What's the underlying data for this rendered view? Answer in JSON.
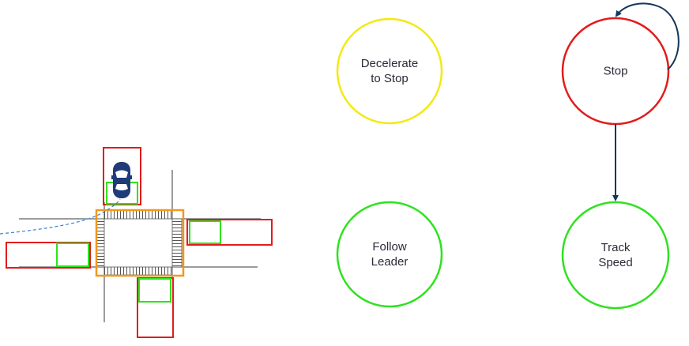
{
  "diagram": {
    "title": "",
    "states": [
      {
        "id": "decelerate",
        "line1": "Decelerate",
        "line2": "to Stop",
        "color": "#f2ea10"
      },
      {
        "id": "stop",
        "line1": "Stop",
        "line2": "",
        "color": "#e31b1b"
      },
      {
        "id": "follow",
        "line1": "Follow",
        "line2": "Leader",
        "color": "#2fe21f"
      },
      {
        "id": "track",
        "line1": "Track",
        "line2": "Speed",
        "color": "#2fe21f"
      }
    ],
    "transitions": [
      {
        "from": "stop",
        "to": "stop",
        "type": "self-loop"
      },
      {
        "from": "stop",
        "to": "track",
        "type": "arrow"
      }
    ],
    "arrow_color": "#16365c"
  },
  "intersection": {
    "description_icon": "car-icon",
    "road_color": "#3a3a3a",
    "region_colors": {
      "outer": "#e31b1b",
      "inner": "#2fe21f",
      "box": "#f0981e",
      "path": "#3b7ed6",
      "car": "#1f3b78"
    }
  }
}
